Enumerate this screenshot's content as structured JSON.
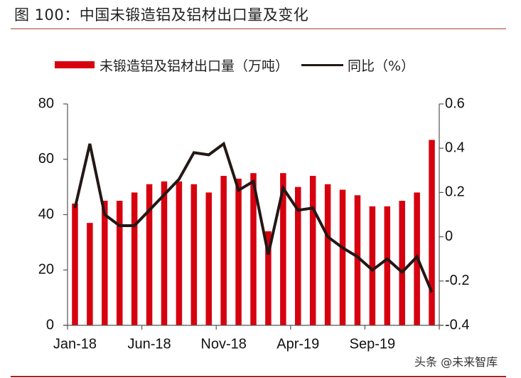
{
  "title": "图 100：中国未锻造铝及铝材出口量及变化",
  "legend": {
    "bar_label": "未锻造铝及铝材出口量（万吨）",
    "line_label": "同比（%）"
  },
  "watermark": "头条 @未来智库",
  "colors": {
    "bar": "#d7000f",
    "line": "#231815",
    "rule": "#b01e1e",
    "axis": "#555555"
  },
  "chart_data": {
    "type": "bar+line",
    "title": "图 100：中国未锻造铝及铝材出口量及变化",
    "categories": [
      "Jan-18",
      "Feb-18",
      "Mar-18",
      "Apr-18",
      "May-18",
      "Jun-18",
      "Jul-18",
      "Aug-18",
      "Sep-18",
      "Oct-18",
      "Nov-18",
      "Dec-18",
      "Jan-19",
      "Feb-19",
      "Mar-19",
      "Apr-19",
      "May-19",
      "Jun-19",
      "Jul-19",
      "Aug-19",
      "Sep-19",
      "Oct-19",
      "Nov-19",
      "Dec-19",
      "Jan-20"
    ],
    "x_tick_labels": [
      "Jan-18",
      "Jun-18",
      "Nov-18",
      "Apr-19",
      "Sep-19"
    ],
    "series": [
      {
        "name": "未锻造铝及铝材出口量（万吨）",
        "type": "bar",
        "axis": "left",
        "values": [
          44,
          37,
          45,
          45,
          48,
          51,
          52,
          52,
          51,
          48,
          54,
          53,
          55,
          34,
          55,
          50,
          54,
          51,
          49,
          47,
          43,
          43,
          45,
          48,
          67
        ]
      },
      {
        "name": "同比（%）",
        "type": "line",
        "axis": "right",
        "values": [
          0.13,
          0.42,
          0.1,
          0.05,
          0.05,
          0.12,
          0.19,
          0.26,
          0.38,
          0.37,
          0.42,
          0.21,
          0.25,
          -0.08,
          0.22,
          0.12,
          0.13,
          0.0,
          -0.05,
          -0.09,
          -0.15,
          -0.1,
          -0.16,
          -0.09,
          -0.25
        ]
      }
    ],
    "left_axis": {
      "ylim": [
        0,
        80
      ],
      "ticks": [
        "0",
        "20",
        "40",
        "60",
        "80"
      ]
    },
    "right_axis": {
      "ylim": [
        -0.4,
        0.6
      ],
      "ticks": [
        "-0.4",
        "-0.2",
        "0",
        "0.2",
        "0.4",
        "0.6"
      ]
    },
    "xlabel": "",
    "ylabel": "",
    "grid": false,
    "legend_position": "top"
  }
}
